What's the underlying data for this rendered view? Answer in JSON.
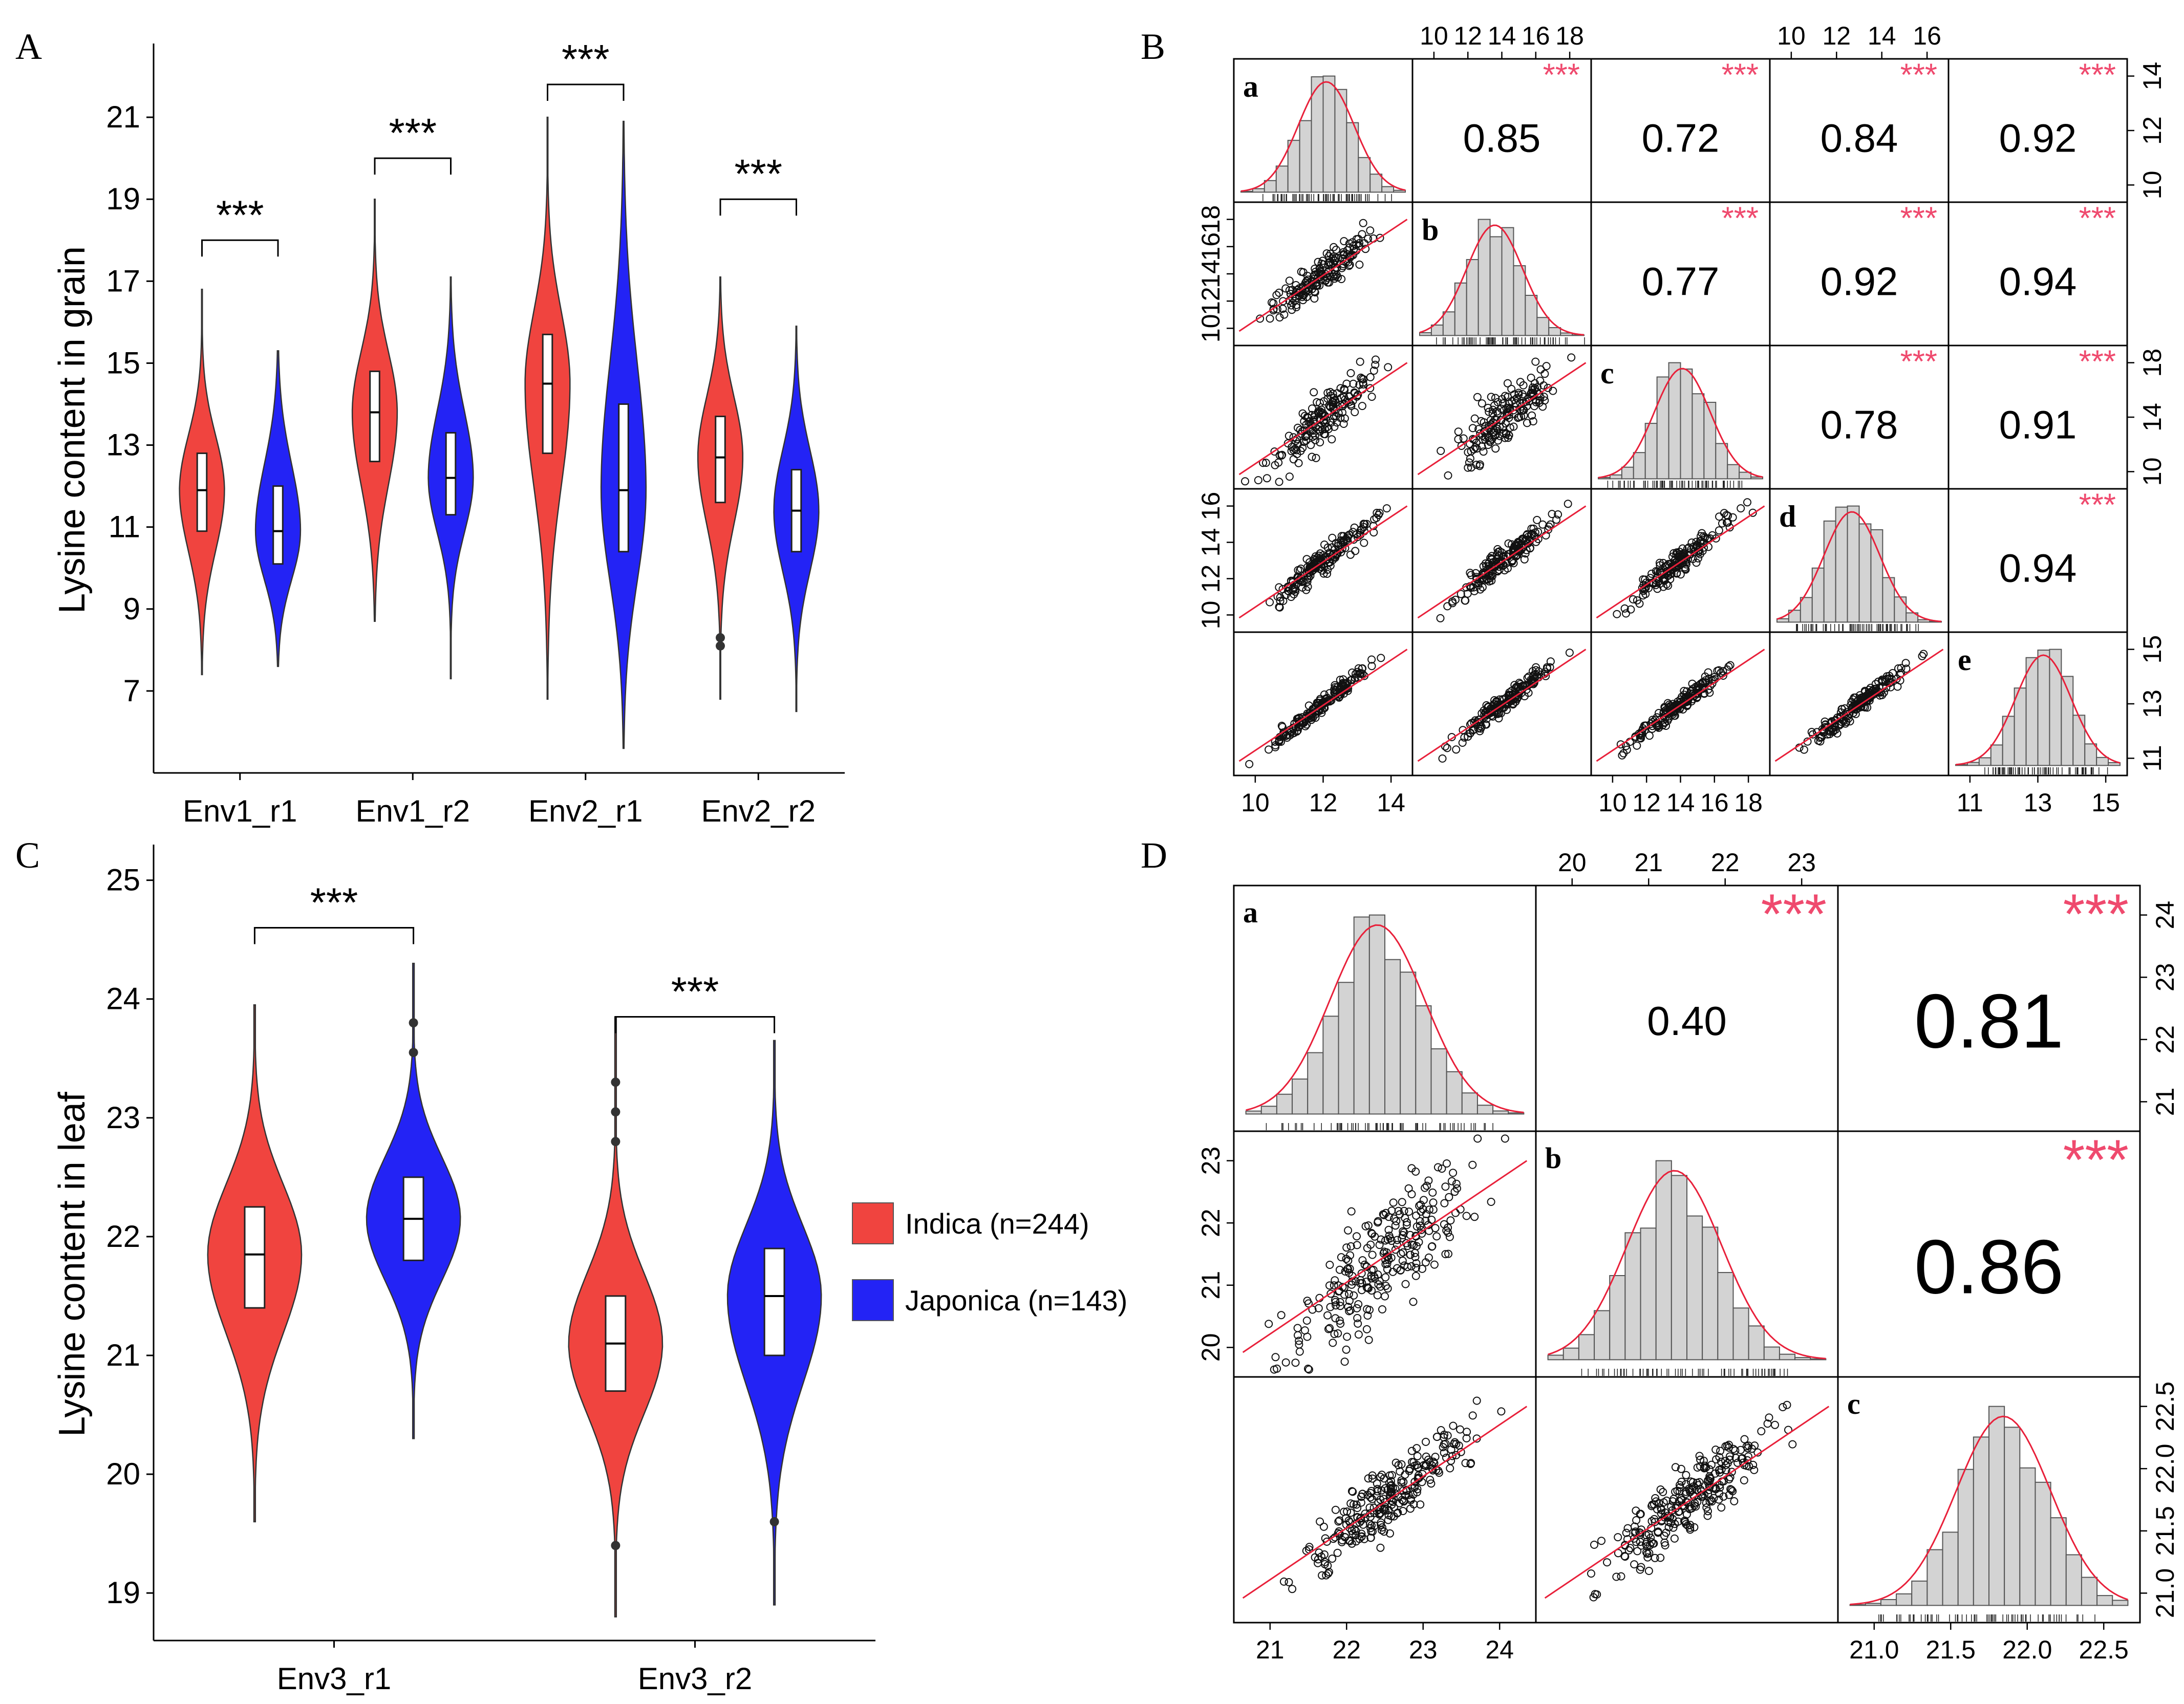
{
  "colors": {
    "indica": "#f0443f",
    "japonica": "#2323f5",
    "fit": "#e8203a",
    "stars": "#ef4a6e",
    "hist": "#d3d3d3"
  },
  "legend": {
    "items": [
      "Indica (n=244)",
      "Japonica (n=143)"
    ]
  },
  "chart_data": [
    {
      "panel": "A",
      "type": "violin",
      "ylabel": "Lysine content in grain",
      "yticks": [
        7,
        9,
        11,
        13,
        15,
        17,
        19,
        21
      ],
      "ylim": [
        5,
        22.8
      ],
      "sig_label": "***",
      "groups": [
        {
          "category": "Env1_r1",
          "indica": {
            "min": 7.4,
            "q1": 10.9,
            "median": 11.9,
            "q3": 12.8,
            "max": 16.8
          },
          "japonica": {
            "min": 7.6,
            "q1": 10.1,
            "median": 10.9,
            "q3": 12.0,
            "max": 15.3
          },
          "bracket_y": 18.0
        },
        {
          "category": "Env1_r2",
          "indica": {
            "min": 8.7,
            "q1": 12.6,
            "median": 13.8,
            "q3": 14.8,
            "max": 19.0
          },
          "japonica": {
            "min": 7.3,
            "q1": 11.3,
            "median": 12.2,
            "q3": 13.3,
            "max": 17.1
          },
          "bracket_y": 20.0
        },
        {
          "category": "Env2_r1",
          "indica": {
            "min": 6.8,
            "q1": 12.8,
            "median": 14.5,
            "q3": 15.7,
            "max": 21.0
          },
          "japonica": {
            "min": 5.6,
            "q1": 10.4,
            "median": 11.9,
            "q3": 14.0,
            "max": 20.9
          },
          "bracket_y": 21.8
        },
        {
          "category": "Env2_r2",
          "indica": {
            "min": 6.8,
            "q1": 11.6,
            "median": 12.7,
            "q3": 13.7,
            "max": 17.1,
            "outliers": [
              8.3,
              8.1
            ]
          },
          "japonica": {
            "min": 6.5,
            "q1": 10.4,
            "median": 11.4,
            "q3": 12.4,
            "max": 15.9
          },
          "bracket_y": 19.0
        }
      ]
    },
    {
      "panel": "B",
      "type": "scatter_matrix",
      "labels": [
        "a",
        "b",
        "c",
        "d",
        "e"
      ],
      "correlations": [
        {
          "row": 0,
          "col": 1,
          "r": "0.85",
          "sig": "***"
        },
        {
          "row": 0,
          "col": 2,
          "r": "0.72",
          "sig": "***"
        },
        {
          "row": 0,
          "col": 3,
          "r": "0.84",
          "sig": "***"
        },
        {
          "row": 0,
          "col": 4,
          "r": "0.92",
          "sig": "***"
        },
        {
          "row": 1,
          "col": 2,
          "r": "0.77",
          "sig": "***"
        },
        {
          "row": 1,
          "col": 3,
          "r": "0.92",
          "sig": "***"
        },
        {
          "row": 1,
          "col": 4,
          "r": "0.94",
          "sig": "***"
        },
        {
          "row": 2,
          "col": 3,
          "r": "0.78",
          "sig": "***"
        },
        {
          "row": 2,
          "col": 4,
          "r": "0.91",
          "sig": "***"
        },
        {
          "row": 3,
          "col": 4,
          "r": "0.94",
          "sig": "***"
        }
      ],
      "axes": {
        "top_col1": [
          "10",
          "12",
          "14",
          "16",
          "18"
        ],
        "top_col3": [
          "10",
          "12",
          "14",
          "16"
        ],
        "right_row0": [
          "10",
          "12",
          "14"
        ],
        "right_row2": [
          "10",
          "14",
          "18"
        ],
        "right_row4": [
          "11",
          "13",
          "15"
        ],
        "left_row1": [
          "10",
          "12",
          "14",
          "16",
          "18"
        ],
        "left_row3": [
          "10",
          "12",
          "14",
          "16"
        ],
        "bottom_col0": [
          "10",
          "12",
          "14"
        ],
        "bottom_col2": [
          "10",
          "12",
          "14",
          "16",
          "18"
        ],
        "bottom_col4": [
          "11",
          "13",
          "15"
        ]
      }
    },
    {
      "panel": "C",
      "type": "violin",
      "ylabel": "Lysine content in leaf",
      "yticks": [
        19,
        20,
        21,
        22,
        23,
        24,
        25
      ],
      "ylim": [
        18.6,
        25.3
      ],
      "sig_label": "***",
      "groups": [
        {
          "category": "Env3_r1",
          "indica": {
            "min": 19.6,
            "q1": 21.4,
            "median": 21.85,
            "q3": 22.25,
            "max": 23.95
          },
          "japonica": {
            "min": 20.3,
            "q1": 21.8,
            "median": 22.15,
            "q3": 22.5,
            "max": 24.3,
            "outliers": [
              23.8,
              23.55
            ]
          },
          "bracket_y": 24.6
        },
        {
          "category": "Env3_r2",
          "indica": {
            "min": 18.8,
            "q1": 20.7,
            "median": 21.1,
            "q3": 21.5,
            "max": 23.85,
            "outliers": [
              23.3,
              23.05,
              22.8,
              19.4
            ]
          },
          "japonica": {
            "min": 18.9,
            "q1": 21.0,
            "median": 21.5,
            "q3": 21.9,
            "max": 23.65,
            "outliers": [
              19.6
            ]
          },
          "bracket_y": 23.85
        }
      ]
    },
    {
      "panel": "D",
      "type": "scatter_matrix",
      "labels": [
        "a",
        "b",
        "c"
      ],
      "correlations": [
        {
          "row": 0,
          "col": 1,
          "r": "0.40",
          "sig": "***"
        },
        {
          "row": 0,
          "col": 2,
          "r": "0.81",
          "sig": "***"
        },
        {
          "row": 1,
          "col": 2,
          "r": "0.86",
          "sig": "***"
        }
      ],
      "axes": {
        "top_col1": [
          "20",
          "21",
          "22",
          "23"
        ],
        "right_row0": [
          "21",
          "22",
          "23",
          "24"
        ],
        "left_row1": [
          "20",
          "21",
          "22",
          "23"
        ],
        "right_row2": [
          "21.0",
          "21.5",
          "22.0",
          "22.5"
        ],
        "bottom_col0": [
          "21",
          "22",
          "23",
          "24"
        ],
        "bottom_col2": [
          "21.0",
          "21.5",
          "22.0",
          "22.5"
        ]
      }
    }
  ],
  "panel_letters": [
    "A",
    "B",
    "C",
    "D"
  ]
}
